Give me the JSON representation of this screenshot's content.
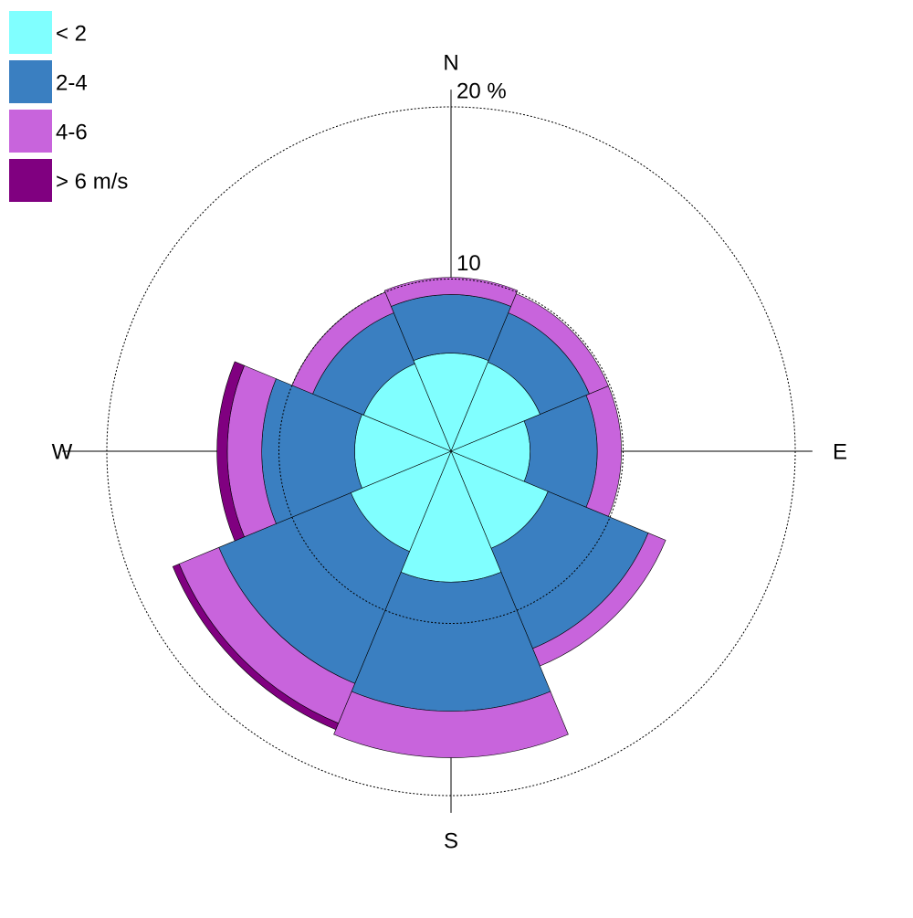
{
  "chart_data": {
    "type": "windrose",
    "categories": [
      "N",
      null,
      "E",
      null,
      "S",
      null,
      "W",
      null
    ],
    "series": [
      {
        "name": "< 2",
        "color": "#80ffff",
        "values": [
          5.7,
          5.6,
          4.6,
          6.1,
          7.6,
          6.3,
          5.6,
          5.5
        ]
      },
      {
        "name": "2-4",
        "color": "#3a7fc1",
        "values": [
          3.4,
          3.1,
          3.9,
          6.3,
          7.5,
          8.3,
          5.4,
          3.2
        ]
      },
      {
        "name": "4-6",
        "color": "#c864dc",
        "values": [
          1.0,
          1.2,
          1.4,
          1.1,
          2.7,
          2.5,
          2.0,
          1.3
        ]
      },
      {
        "name": "> 6 m/s",
        "color": "#800080",
        "values": [
          0,
          0,
          0,
          0,
          0,
          0.4,
          0.6,
          0
        ]
      }
    ],
    "rlim": [
      0,
      20
    ],
    "rticks": [
      10,
      {
        "value": 20,
        "label": "20 %"
      }
    ],
    "grid": true,
    "legend": "top-left"
  }
}
